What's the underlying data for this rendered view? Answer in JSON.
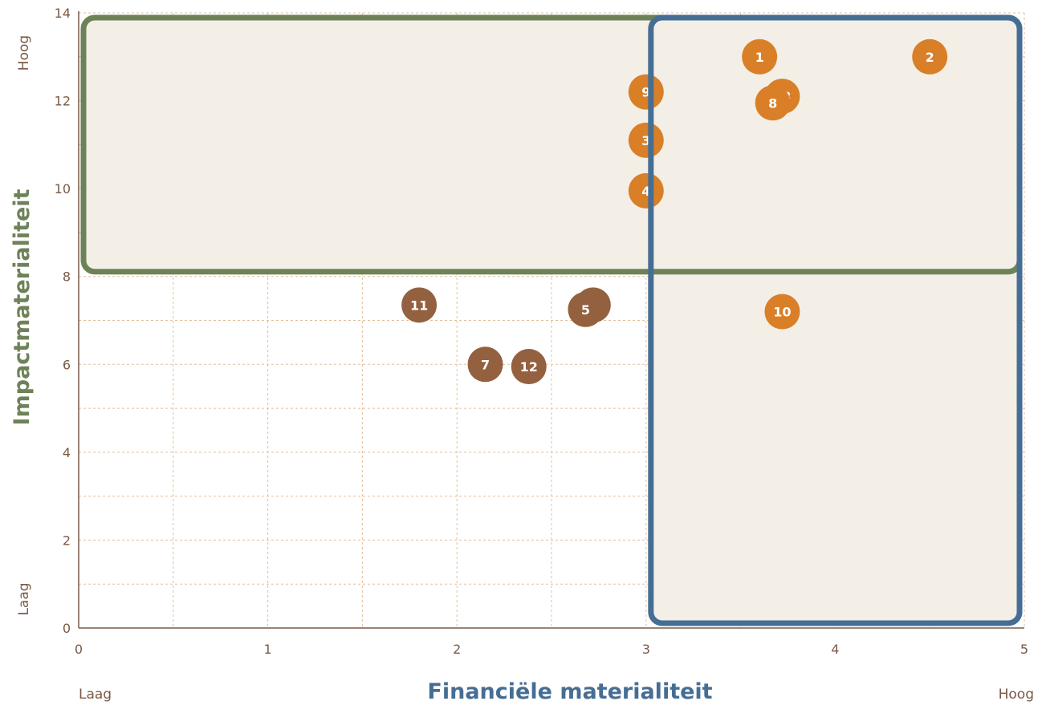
{
  "chart_data": {
    "type": "scatter",
    "xlabel": "Financiële materialiteit",
    "ylabel": "Impactmaterialiteit",
    "xlim": [
      0,
      5
    ],
    "ylim": [
      0,
      14
    ],
    "x_ticks": [
      0,
      1,
      2,
      3,
      4,
      5
    ],
    "y_ticks": [
      0,
      2,
      4,
      6,
      8,
      10,
      12,
      14
    ],
    "x_low_label": "Laag",
    "x_high_label": "Hoog",
    "y_low_label": "Laag",
    "y_high_label": "Hoog",
    "grid": true,
    "threshold_regions": [
      {
        "axis": "impact",
        "x_range": [
          0,
          5
        ],
        "y_range": [
          8,
          14
        ],
        "color": "#6e8258"
      },
      {
        "axis": "financial",
        "x_range": [
          3,
          5
        ],
        "y_range": [
          0,
          14
        ],
        "color": "#466e94"
      }
    ],
    "colors": {
      "material": "#d97f27",
      "non_material": "#93613f",
      "grid": "#e3bf98",
      "axis": "#7a5a48",
      "region_fill": "#f3efe7"
    },
    "points": [
      {
        "label": "1",
        "x": 3.6,
        "y": 13.0,
        "material": true
      },
      {
        "label": "2",
        "x": 4.5,
        "y": 13.0,
        "material": true
      },
      {
        "label": "9",
        "x": 3.0,
        "y": 12.2,
        "material": true
      },
      {
        "label": "13",
        "x": 3.72,
        "y": 12.1,
        "material": true
      },
      {
        "label": "8",
        "x": 3.67,
        "y": 11.95,
        "material": true
      },
      {
        "label": "3",
        "x": 3.0,
        "y": 11.1,
        "material": true
      },
      {
        "label": "4",
        "x": 3.0,
        "y": 9.95,
        "material": true
      },
      {
        "label": "10",
        "x": 3.72,
        "y": 7.2,
        "material": true
      },
      {
        "label": "11",
        "x": 1.8,
        "y": 7.35,
        "material": false
      },
      {
        "label": "6",
        "x": 2.72,
        "y": 7.35,
        "material": false
      },
      {
        "label": "5",
        "x": 2.68,
        "y": 7.25,
        "material": false
      },
      {
        "label": "7",
        "x": 2.15,
        "y": 6.0,
        "material": false
      },
      {
        "label": "12",
        "x": 2.38,
        "y": 5.95,
        "material": false
      }
    ]
  }
}
